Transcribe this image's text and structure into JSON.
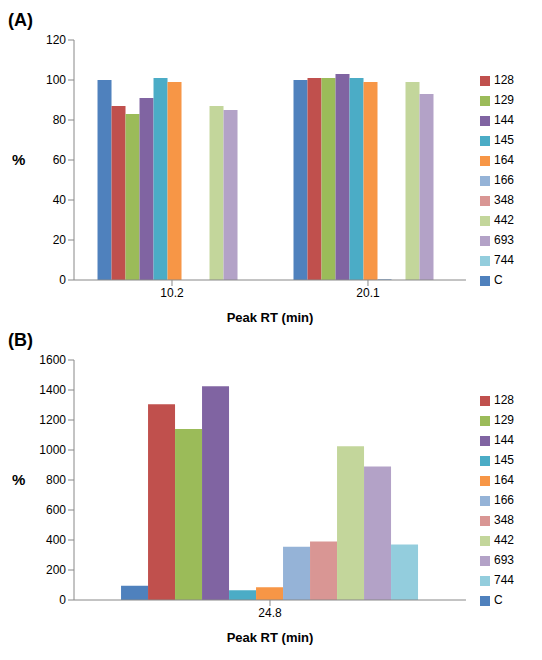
{
  "chart_data": [
    {
      "type": "bar",
      "title": "(A)",
      "xlabel": "Peak RT (min)",
      "ylabel": "%",
      "categories": [
        "10.2",
        "20.1"
      ],
      "series": [
        {
          "name": "C",
          "color": "#4F81BD",
          "values": [
            100,
            100
          ]
        },
        {
          "name": "128",
          "color": "#C0504D",
          "values": [
            87,
            101
          ]
        },
        {
          "name": "129",
          "color": "#9BBB59",
          "values": [
            83,
            101
          ]
        },
        {
          "name": "144",
          "color": "#8064A2",
          "values": [
            91,
            103
          ]
        },
        {
          "name": "145",
          "color": "#4BACC6",
          "values": [
            101,
            101
          ]
        },
        {
          "name": "164",
          "color": "#F79646",
          "values": [
            99,
            99
          ]
        },
        {
          "name": "166",
          "color": "#95B3D7",
          "values": [
            0,
            0.5
          ]
        },
        {
          "name": "348",
          "color": "#D99694",
          "values": [
            0,
            0
          ]
        },
        {
          "name": "442",
          "color": "#C3D69B",
          "values": [
            87,
            99
          ]
        },
        {
          "name": "693",
          "color": "#B3A2C7",
          "values": [
            85,
            93
          ]
        },
        {
          "name": "744",
          "color": "#93CDDD",
          "values": [
            0,
            0
          ]
        }
      ],
      "ylim": [
        0,
        120
      ],
      "yticks": [
        0,
        20,
        40,
        60,
        80,
        100,
        120
      ],
      "grid": false,
      "legend": "right"
    },
    {
      "type": "bar",
      "title": "(B)",
      "xlabel": "Peak RT (min)",
      "ylabel": "%",
      "categories": [
        "24.8"
      ],
      "series": [
        {
          "name": "C",
          "color": "#4F81BD",
          "values": [
            95
          ]
        },
        {
          "name": "128",
          "color": "#C0504D",
          "values": [
            1305
          ]
        },
        {
          "name": "129",
          "color": "#9BBB59",
          "values": [
            1140
          ]
        },
        {
          "name": "144",
          "color": "#8064A2",
          "values": [
            1425
          ]
        },
        {
          "name": "145",
          "color": "#4BACC6",
          "values": [
            65
          ]
        },
        {
          "name": "164",
          "color": "#F79646",
          "values": [
            85
          ]
        },
        {
          "name": "166",
          "color": "#95B3D7",
          "values": [
            355
          ]
        },
        {
          "name": "348",
          "color": "#D99694",
          "values": [
            390
          ]
        },
        {
          "name": "442",
          "color": "#C3D69B",
          "values": [
            1025
          ]
        },
        {
          "name": "693",
          "color": "#B3A2C7",
          "values": [
            890
          ]
        },
        {
          "name": "744",
          "color": "#93CDDD",
          "values": [
            370
          ]
        }
      ],
      "ylim": [
        0,
        1600
      ],
      "yticks": [
        0,
        200,
        400,
        600,
        800,
        1000,
        1200,
        1400,
        1600
      ],
      "grid": false,
      "legend": "right"
    }
  ]
}
